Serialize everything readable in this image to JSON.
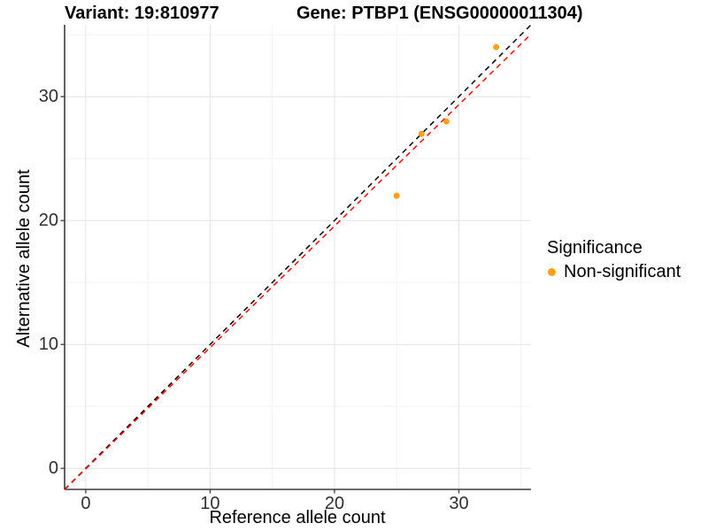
{
  "page": {
    "background": "#FFFFFF",
    "accent_orange": "#FFA019",
    "fit_line_red": "#FF0000",
    "identity_line_black": "#000000"
  },
  "header": {
    "title_left": "Variant: 19:810977",
    "title_right": "Gene: PTBP1 (ENSG00000011304)"
  },
  "chart_data": {
    "type": "scatter",
    "title": "Variant: 19:810977   Gene: PTBP1 (ENSG00000011304)",
    "xlabel": "Reference allele count",
    "ylabel": "Alternative allele count",
    "xlim": [
      -1.7,
      35.8
    ],
    "ylim": [
      -1.7,
      35.8
    ],
    "x_ticks": [
      0,
      10,
      20,
      30
    ],
    "y_ticks": [
      0,
      10,
      20,
      30
    ],
    "x_minor_ticks": [
      5,
      15,
      25,
      35
    ],
    "y_minor_ticks": [
      5,
      15,
      25,
      35
    ],
    "grid": true,
    "legend_position": "right",
    "legend": {
      "title": "Significance",
      "items": [
        {
          "label": "Non-significant",
          "color": "#FFA019"
        }
      ]
    },
    "series": [
      {
        "name": "Non-significant",
        "color": "#FFA019",
        "points": [
          {
            "x": 25,
            "y": 22
          },
          {
            "x": 27,
            "y": 27
          },
          {
            "x": 29,
            "y": 28
          },
          {
            "x": 33,
            "y": 34
          }
        ]
      }
    ],
    "lines": [
      {
        "name": "identity-line",
        "slope": 1.0,
        "intercept": 0.0,
        "color": "#000000",
        "style": "dashed"
      },
      {
        "name": "fit-line",
        "slope": 0.98,
        "intercept": -0.05,
        "color": "#FF0000",
        "style": "dashed"
      }
    ],
    "colors": {
      "grid_major": "#E4E4E4",
      "grid_minor": "#F2F2F2",
      "axis_line": "#3C3C3C",
      "tick_text": "#303030"
    }
  }
}
